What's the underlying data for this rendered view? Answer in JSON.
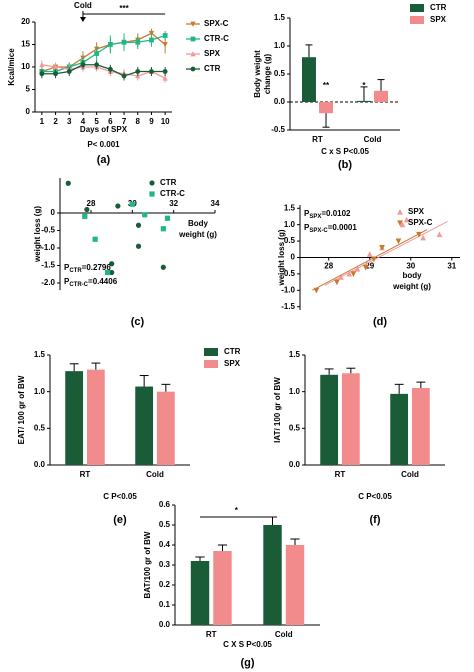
{
  "chart_data": [
    {
      "type": "line",
      "panel": "(a)",
      "ylabel": [
        "Kcal/mice"
      ],
      "xlabel": [
        "Days of SPX"
      ],
      "note": "P< 0.001",
      "x": [
        1,
        2,
        3,
        4,
        5,
        6,
        7,
        8,
        9,
        10
      ],
      "xlim": [
        0.5,
        10.5
      ],
      "xticks": [
        1,
        2,
        3,
        4,
        5,
        6,
        7,
        8,
        9,
        10
      ],
      "ylim": [
        0,
        20
      ],
      "yticks": [
        0,
        5,
        10,
        15,
        20
      ],
      "annotations": [
        {
          "text": "Cold",
          "x": 4
        },
        {
          "text": "***",
          "x": [
            4,
            10
          ]
        }
      ],
      "series": [
        {
          "name": "SPX-C",
          "color": "#c8782f",
          "marker": "triangle-down",
          "values": [
            9,
            10,
            10,
            12,
            14,
            15,
            15.5,
            16,
            17.5,
            15
          ],
          "errors": [
            1,
            1,
            1,
            1.5,
            1.5,
            1.5,
            1,
            1.5,
            1,
            2
          ]
        },
        {
          "name": "CTR-C",
          "color": "#1fb884",
          "marker": "square",
          "values": [
            9,
            9,
            10,
            11,
            13,
            15,
            15.5,
            15.5,
            16,
            17
          ],
          "errors": [
            1,
            1,
            1,
            1.5,
            1.5,
            2,
            2,
            1.5,
            1.5,
            1
          ]
        },
        {
          "name": "SPX",
          "color": "#f29a9a",
          "marker": "triangle-up",
          "values": [
            10.5,
            10,
            9.5,
            10,
            10,
            9,
            8.5,
            8,
            9,
            7.5
          ],
          "errors": [
            1,
            1,
            1,
            1,
            1,
            1,
            1,
            1,
            1,
            1
          ]
        },
        {
          "name": "CTR",
          "color": "#1a5c38",
          "marker": "circle",
          "values": [
            8.5,
            8.5,
            9,
            10.5,
            10.5,
            9.5,
            8,
            9,
            9,
            9
          ],
          "errors": [
            1,
            1,
            1,
            1,
            1,
            1,
            1,
            1,
            1,
            1
          ]
        }
      ]
    },
    {
      "type": "bar",
      "panel": "(b)",
      "ylabel": [
        "Body weight",
        "change (g)"
      ],
      "note": "C x S P<0.05",
      "legend": true,
      "categories": [
        "RT",
        "Cold"
      ],
      "ylim": [
        -0.5,
        1.5
      ],
      "yticks": [
        -0.5,
        {
          "value": 0,
          "label": "0.0"
        },
        0.5,
        {
          "value": 1,
          "label": "1.0"
        },
        1.5
      ],
      "annotations": [
        {
          "text": "**"
        },
        {
          "text": "*"
        }
      ],
      "series": [
        {
          "name": "CTR",
          "color": "#1a5c38",
          "values": [
            0.8,
            0.02
          ],
          "errors": [
            0.22,
            0.25
          ]
        },
        {
          "name": "SPX",
          "color": "#f28b8b",
          "values": [
            -0.2,
            0.2
          ],
          "errors": [
            0.25,
            0.2
          ]
        }
      ]
    },
    {
      "type": "scatter",
      "panel": "(c)",
      "ylabel": [
        "weight loss (g)"
      ],
      "xlabel": [
        "Body",
        "weight (g)"
      ],
      "xlim": [
        26.5,
        34
      ],
      "xticks": [
        28,
        30,
        32,
        34
      ],
      "ylim": [
        -2.2,
        1
      ],
      "yticks": [
        0,
        -0.5,
        {
          "value": -1,
          "label": "-1.0"
        },
        -1.5,
        {
          "value": -2,
          "label": "-2.0"
        }
      ],
      "annotations": [
        {
          "main": "P",
          "sub": "CTR",
          "rest": "=0.2796"
        },
        {
          "main": "P",
          "sub": "CTR-C",
          "rest": "=0.4406"
        }
      ],
      "series": [
        {
          "name": "CTR",
          "color": "#1a5c38",
          "marker": "circle",
          "x": [
            26.9,
            27.8,
            29.3,
            30.3,
            30.3,
            29.0,
            29.0,
            31.5
          ],
          "values": [
            0.85,
            0.1,
            0.2,
            -0.35,
            -0.95,
            -1.45,
            -1.7,
            -1.55
          ]
        },
        {
          "name": "CTR-C",
          "color": "#1fb884",
          "marker": "square",
          "x": [
            27.7,
            28.2,
            28.8,
            30.0,
            30.6,
            31.7,
            31.5
          ],
          "values": [
            -0.1,
            -0.75,
            -1.7,
            0.25,
            -0.05,
            -0.15,
            -0.45
          ]
        }
      ]
    },
    {
      "type": "scatter",
      "panel": "(d)",
      "ylabel": [
        "weight loss (g)"
      ],
      "xlabel": [
        "body",
        "weight (g)"
      ],
      "xlim": [
        27.3,
        31.2
      ],
      "xticks": [
        28,
        29,
        30,
        31
      ],
      "ylim": [
        -1.6,
        1.6
      ],
      "yticks": [
        1.5,
        {
          "value": 1,
          "label": "1.0"
        },
        0.5,
        0,
        -0.5,
        {
          "value": -1,
          "label": "-1.0"
        },
        -1.5
      ],
      "annotations": [
        {
          "main": "P",
          "sub": "SPX",
          "rest": "=0.0102"
        },
        {
          "main": "P",
          "sub": "SPX-C",
          "rest": "=0.0001"
        }
      ],
      "series": [
        {
          "name": "SPX",
          "color": "#f29a9a",
          "marker": "triangle-up",
          "x": [
            28.3,
            28.5,
            28.7,
            29.0,
            29.3,
            29.8,
            29.9,
            30.3,
            30.7
          ],
          "values": [
            -0.6,
            -0.5,
            -0.35,
            0.1,
            0.3,
            1.0,
            1.15,
            0.6,
            0.7
          ],
          "fit": {
            "x": [
              27.9,
              30.9
            ],
            "y": [
              -0.85,
              1.1
            ]
          }
        },
        {
          "name": "SPX-C",
          "color": "#c8782f",
          "marker": "triangle-down",
          "x": [
            27.7,
            28.2,
            28.6,
            28.9,
            29.1,
            29.3,
            29.7,
            30.2
          ],
          "values": [
            -1.0,
            -0.75,
            -0.5,
            -0.3,
            -0.05,
            0.3,
            0.5,
            0.7
          ],
          "fit": {
            "x": [
              27.6,
              30.4
            ],
            "y": [
              -1.0,
              0.85
            ]
          }
        }
      ]
    },
    {
      "type": "bar",
      "panel": "(e)",
      "ylabel": [
        "EAT/ 100 gr of BW"
      ],
      "note": "C  P<0.05",
      "legend": true,
      "categories": [
        "RT",
        "Cold"
      ],
      "ylim": [
        0,
        1.5
      ],
      "yticks": [
        {
          "value": 0,
          "label": "0.0"
        },
        0.5,
        {
          "value": 1,
          "label": "1.0"
        },
        1.5
      ],
      "series": [
        {
          "name": "CTR",
          "color": "#1a5c38",
          "values": [
            1.28,
            1.07
          ],
          "errors": [
            0.1,
            0.15
          ]
        },
        {
          "name": "SPX",
          "color": "#f28b8b",
          "values": [
            1.3,
            1.0
          ],
          "errors": [
            0.09,
            0.1
          ]
        }
      ]
    },
    {
      "type": "bar",
      "panel": "(f)",
      "ylabel": [
        "IAT/ 100 gr of BW"
      ],
      "note": "C  P<0.05",
      "legend": false,
      "categories": [
        "RT",
        "Cold"
      ],
      "ylim": [
        0,
        1.5
      ],
      "yticks": [
        {
          "value": 0,
          "label": "0.0"
        },
        0.5,
        {
          "value": 1,
          "label": "1.0"
        },
        1.5
      ],
      "series": [
        {
          "name": "CTR",
          "color": "#1a5c38",
          "values": [
            1.23,
            0.97
          ],
          "errors": [
            0.08,
            0.13
          ]
        },
        {
          "name": "SPX",
          "color": "#f28b8b",
          "values": [
            1.25,
            1.05
          ],
          "errors": [
            0.07,
            0.08
          ]
        }
      ]
    },
    {
      "type": "bar",
      "panel": "(g)",
      "ylabel": [
        "BAT/100 gr of BW"
      ],
      "note": "C X S P<0.05",
      "legend": false,
      "categories": [
        "RT",
        "Cold"
      ],
      "ylim": [
        0,
        0.6
      ],
      "yticks": [
        {
          "value": 0,
          "label": "0.0"
        },
        0.1,
        0.2,
        0.3,
        0.4,
        0.5,
        0.6
      ],
      "annotations": [
        {
          "text": "*"
        }
      ],
      "series": [
        {
          "name": "CTR",
          "color": "#1a5c38",
          "values": [
            0.32,
            0.5
          ],
          "errors": [
            0.02,
            0.04
          ]
        },
        {
          "name": "SPX",
          "color": "#f28b8b",
          "values": [
            0.37,
            0.4
          ],
          "errors": [
            0.03,
            0.03
          ]
        }
      ]
    }
  ]
}
